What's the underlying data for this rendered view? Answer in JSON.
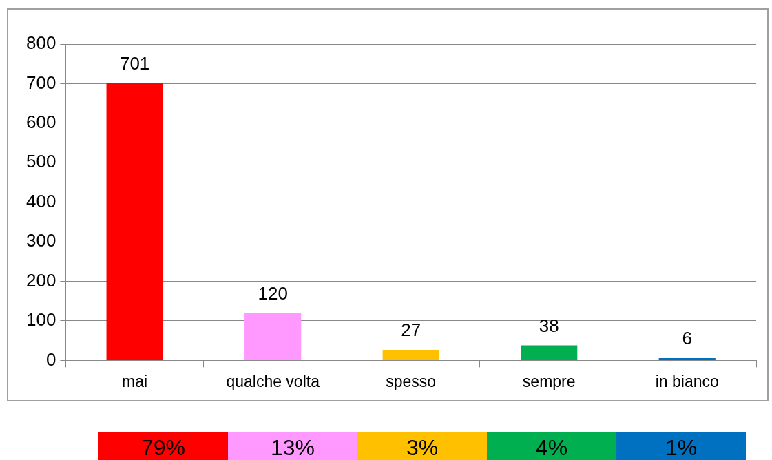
{
  "chart_data": {
    "type": "bar",
    "categories": [
      "mai",
      "qualche volta",
      "spesso",
      "sempre",
      "in bianco"
    ],
    "values": [
      701,
      120,
      27,
      38,
      6
    ],
    "colors": [
      "#ff0000",
      "#ff99ff",
      "#ffc000",
      "#00b050",
      "#0070c0"
    ],
    "ylim": [
      0,
      800
    ],
    "yticks": [
      0,
      100,
      200,
      300,
      400,
      500,
      600,
      700,
      800
    ],
    "grid": "y",
    "legend": false,
    "data_labels": true,
    "annotations": [
      "79%",
      "13%",
      "3%",
      "4%",
      "1%"
    ]
  }
}
